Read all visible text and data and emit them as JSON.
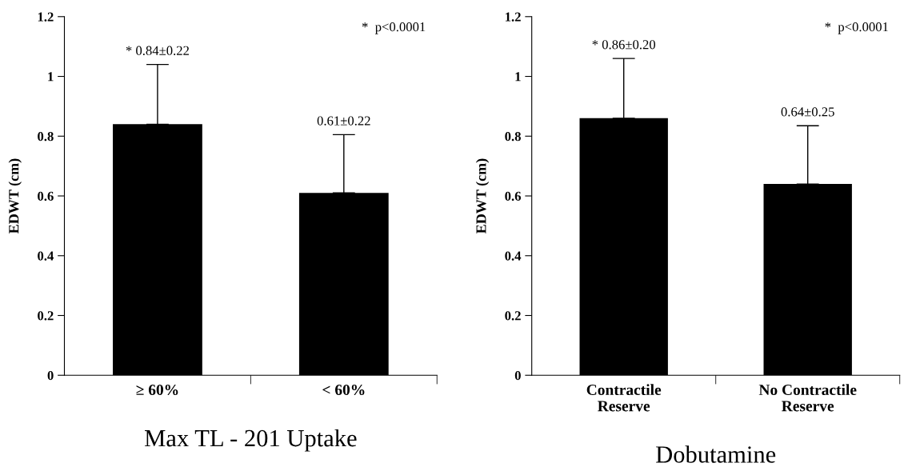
{
  "chart_data": [
    {
      "type": "bar",
      "categories": [
        "≥ 60%",
        "< 60%"
      ],
      "values": [
        0.84,
        0.61
      ],
      "color": "#000000",
      "errors": [
        [
          0.84,
          1.04
        ],
        [
          0.61,
          0.805
        ]
      ],
      "ylabel": "EDWT (cm)",
      "xlabel": "Max TL - 201 Uptake",
      "ylim": [
        0,
        1.2
      ],
      "yticks": [
        0,
        0.2,
        0.4,
        0.6,
        0.8,
        1,
        1.2
      ],
      "grid": false,
      "legend": false,
      "annotations": [
        "*  p<0.0001",
        {
          "text": "* 0.84±0.22",
          "x": "≥ 60%",
          "y": 1.04
        },
        {
          "text": "0.61±0.22",
          "x": "< 60%",
          "y": 0.805
        }
      ]
    },
    {
      "type": "bar",
      "categories": [
        "Contractile\nReserve",
        "No Contractile\nReserve"
      ],
      "values": [
        0.86,
        0.64
      ],
      "color": "#000000",
      "errors": [
        [
          0.86,
          1.06
        ],
        [
          0.64,
          0.835
        ]
      ],
      "ylabel": "EDWT (cm)",
      "xlabel": "Dobutamine",
      "ylim": [
        0,
        1.2
      ],
      "yticks": [
        0,
        0.2,
        0.4,
        0.6,
        0.8,
        1,
        1.2
      ],
      "grid": false,
      "legend": false,
      "annotations": [
        "*  p<0.0001",
        {
          "text": "* 0.86±0.20",
          "x": "Contractile\nReserve",
          "y": 1.06
        },
        {
          "text": "0.64±0.25",
          "x": "No Contractile\nReserve",
          "y": 0.835
        }
      ]
    }
  ]
}
